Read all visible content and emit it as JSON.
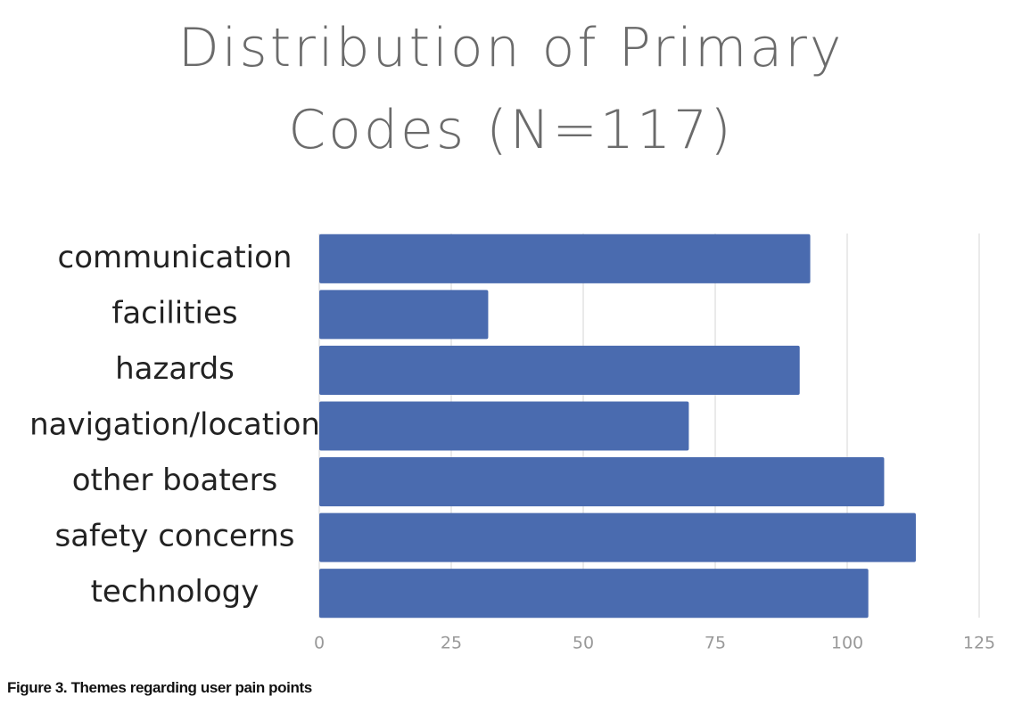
{
  "chart_data": {
    "type": "bar",
    "orientation": "horizontal",
    "title": "Distribution of Primary Codes (N=117)",
    "caption": "Figure 3. Themes regarding user pain points",
    "categories": [
      "communication",
      "facilities",
      "hazards",
      "navigation/location",
      "other boaters",
      "safety concerns",
      "technology"
    ],
    "values": [
      93,
      32,
      91,
      70,
      107,
      113,
      104
    ],
    "color": "#4a6baf",
    "xlim": [
      0,
      125
    ],
    "xticks": [
      0,
      25,
      50,
      75,
      100,
      125
    ],
    "grid": true
  }
}
